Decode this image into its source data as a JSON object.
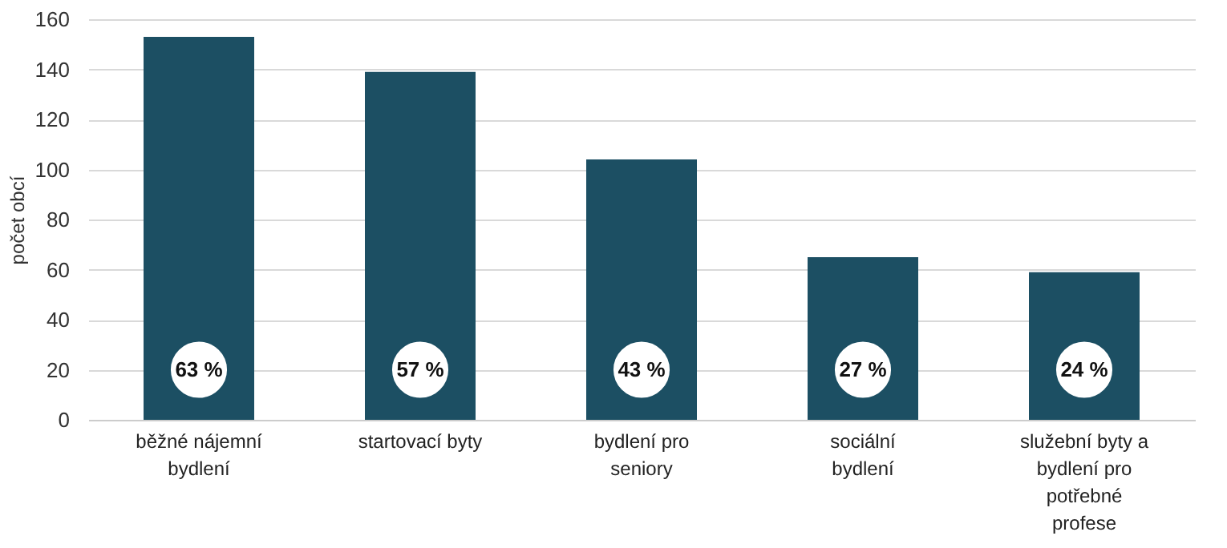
{
  "chart_data": {
    "type": "bar",
    "ylabel": "počet obcí",
    "categories": [
      "běžné nájemní bydlení",
      "startovací byty",
      "bydlení pro seniory",
      "sociální bydlení",
      "služební byty a bydlení pro potřebné profese"
    ],
    "values": [
      153,
      139,
      104,
      65,
      59
    ],
    "annotations": [
      {
        "text": "63 %",
        "x": "běžné nájemní bydlení",
        "y": 20
      },
      {
        "text": "57 %",
        "x": "startovací byty",
        "y": 20
      },
      {
        "text": "43 %",
        "x": "bydlení pro seniory",
        "y": 20
      },
      {
        "text": "27 %",
        "x": "sociální bydlení",
        "y": 20
      },
      {
        "text": "24 %",
        "x": "služební byty a bydlení pro potřebné profese",
        "y": 20
      }
    ],
    "color": "#1c4f63",
    "ylim": [
      0,
      160
    ],
    "yticks": [
      0,
      20,
      40,
      60,
      80,
      100,
      120,
      140,
      160
    ],
    "grid": "y"
  }
}
